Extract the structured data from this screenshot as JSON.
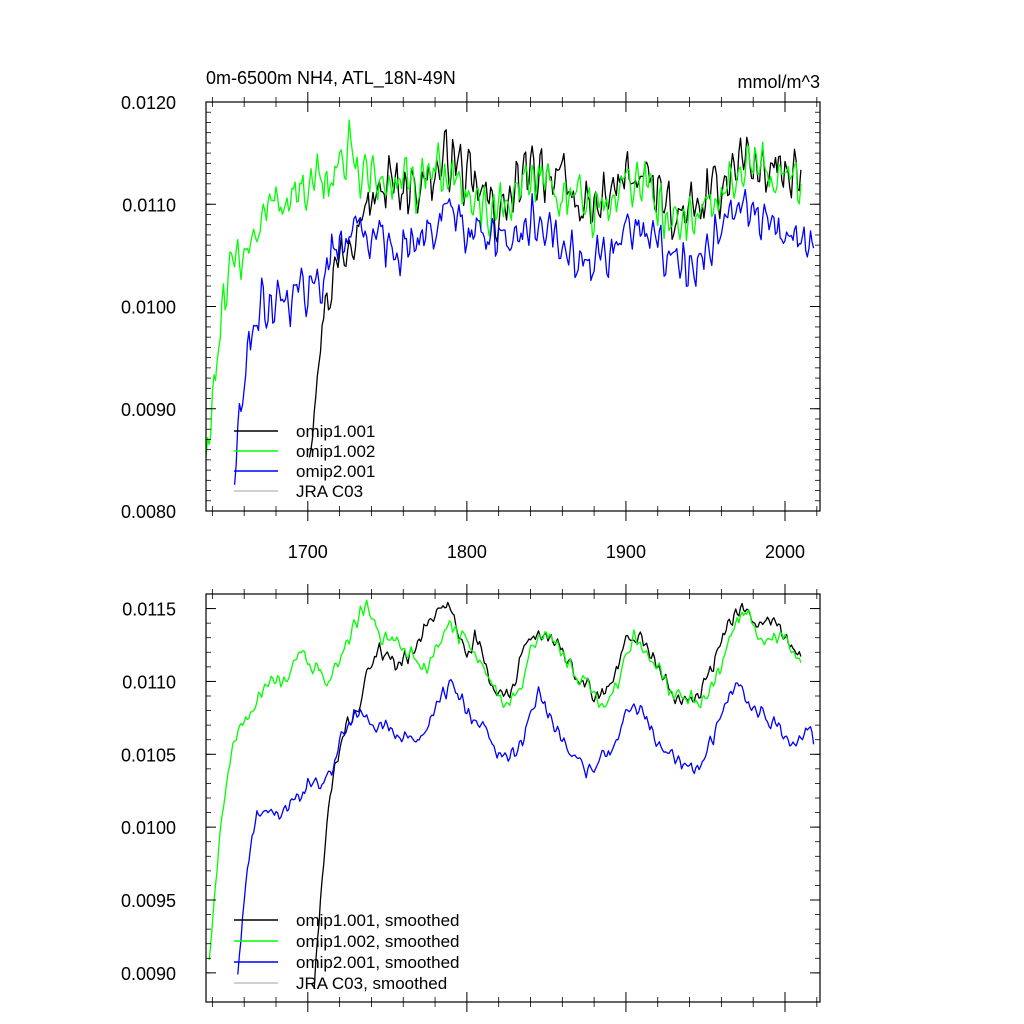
{
  "chart_data": [
    {
      "type": "line",
      "title": "0m-6500m NH4, ATL_18N-49N",
      "units_label": "mmol/m^3",
      "xlabel": "",
      "ylabel": "",
      "xlim": [
        1636,
        2022
      ],
      "ylim": [
        0.008,
        0.012
      ],
      "x_ticks": [
        1700,
        1800,
        1900,
        2000
      ],
      "x_tick_labels": [
        "1700",
        "1800",
        "1900",
        "2000"
      ],
      "y_ticks": [
        0.008,
        0.009,
        0.01,
        0.011,
        0.012
      ],
      "y_tick_labels": [
        "0.0080",
        "0.0090",
        "0.0100",
        "0.0110",
        "0.0120"
      ],
      "grid": false,
      "legend_position": "bottom-left",
      "series": [
        {
          "name": "omip1.001",
          "color": "#000000",
          "noise": 0.00028,
          "period": 5,
          "x": [
            1701,
            1704,
            1708,
            1712,
            1716,
            1720,
            1724,
            1728,
            1732,
            1736,
            1740,
            1745,
            1750,
            1760,
            1770,
            1780,
            1786,
            1790,
            1795,
            1800,
            1810,
            1820,
            1830,
            1840,
            1845,
            1850,
            1860,
            1870,
            1880,
            1890,
            1900,
            1905,
            1910,
            1920,
            1930,
            1940,
            1950,
            1960,
            1970,
            1975,
            1980,
            1990,
            2000,
            2010
          ],
          "y": [
            0.0085,
            0.0092,
            0.0097,
            0.0101,
            0.0103,
            0.0105,
            0.0106,
            0.0108,
            0.0109,
            0.011,
            0.011,
            0.0111,
            0.0112,
            0.0112,
            0.0112,
            0.0113,
            0.0114,
            0.0115,
            0.0114,
            0.0112,
            0.0111,
            0.0109,
            0.0111,
            0.0113,
            0.01135,
            0.01135,
            0.0112,
            0.011,
            0.0109,
            0.0111,
            0.01125,
            0.0113,
            0.01125,
            0.0111,
            0.0109,
            0.0109,
            0.011,
            0.0112,
            0.0114,
            0.0115,
            0.0114,
            0.0113,
            0.0113,
            0.0112
          ]
        },
        {
          "name": "omip1.002",
          "color": "#00ff00",
          "noise": 0.00028,
          "period": 5,
          "x": [
            1636,
            1640,
            1644,
            1648,
            1652,
            1656,
            1660,
            1665,
            1670,
            1675,
            1680,
            1690,
            1700,
            1710,
            1715,
            1720,
            1725,
            1730,
            1735,
            1740,
            1745,
            1750,
            1760,
            1770,
            1780,
            1786,
            1790,
            1795,
            1800,
            1810,
            1820,
            1830,
            1840,
            1845,
            1850,
            1860,
            1870,
            1880,
            1890,
            1900,
            1905,
            1910,
            1920,
            1930,
            1940,
            1950,
            1960,
            1970,
            1975,
            1980,
            1990,
            2000,
            2010
          ],
          "y": [
            0.0085,
            0.0091,
            0.0096,
            0.01,
            0.0103,
            0.0105,
            0.0106,
            0.0107,
            0.0108,
            0.01095,
            0.011,
            0.0111,
            0.0111,
            0.0112,
            0.0113,
            0.0114,
            0.0115,
            0.0114,
            0.0113,
            0.0113,
            0.0112,
            0.0112,
            0.0112,
            0.0111,
            0.0113,
            0.0113,
            0.0113,
            0.0112,
            0.0111,
            0.011,
            0.0109,
            0.0111,
            0.0113,
            0.0113,
            0.01125,
            0.0111,
            0.011,
            0.0109,
            0.011,
            0.0112,
            0.0113,
            0.0112,
            0.011,
            0.0109,
            0.0109,
            0.0109,
            0.0111,
            0.0113,
            0.0114,
            0.0114,
            0.0113,
            0.0113,
            0.0111
          ]
        },
        {
          "name": "omip2.001",
          "color": "#0000ff",
          "noise": 0.00025,
          "period": 5,
          "x": [
            1654,
            1658,
            1662,
            1666,
            1670,
            1680,
            1690,
            1700,
            1710,
            1715,
            1720,
            1725,
            1730,
            1740,
            1750,
            1760,
            1770,
            1780,
            1786,
            1790,
            1795,
            1800,
            1810,
            1820,
            1830,
            1840,
            1845,
            1850,
            1860,
            1870,
            1880,
            1890,
            1900,
            1905,
            1910,
            1920,
            1930,
            1940,
            1950,
            1960,
            1970,
            1975,
            1980,
            1990,
            2000,
            2010,
            2018
          ],
          "y": [
            0.0084,
            0.009,
            0.0095,
            0.0098,
            0.01,
            0.0101,
            0.0101,
            0.0102,
            0.0103,
            0.0105,
            0.0106,
            0.0107,
            0.0108,
            0.0107,
            0.0106,
            0.0106,
            0.0106,
            0.0108,
            0.0109,
            0.011,
            0.0109,
            0.0108,
            0.0107,
            0.0106,
            0.0106,
            0.0108,
            0.0109,
            0.0109,
            0.0107,
            0.0105,
            0.0104,
            0.0105,
            0.0107,
            0.0108,
            0.0108,
            0.0106,
            0.0105,
            0.0104,
            0.0105,
            0.0107,
            0.0109,
            0.011,
            0.0109,
            0.0108,
            0.0107,
            0.0106,
            0.0106
          ]
        },
        {
          "name": "JRA C03",
          "color": "#c0c0c0",
          "x": [],
          "y": []
        }
      ]
    },
    {
      "type": "line",
      "title": "",
      "xlabel": "",
      "ylabel": "",
      "xlim": [
        1636,
        2022
      ],
      "ylim": [
        0.0088,
        0.0116
      ],
      "x_ticks": [
        1700,
        1800,
        1900,
        2000
      ],
      "x_tick_labels": [],
      "y_ticks": [
        0.009,
        0.0095,
        0.01,
        0.0105,
        0.011,
        0.0115
      ],
      "y_tick_labels": [
        "0.0090",
        "0.0095",
        "0.0100",
        "0.0105",
        "0.0110",
        "0.0115"
      ],
      "grid": false,
      "legend_position": "bottom-left",
      "series": [
        {
          "name": "omip1.001, smoothed",
          "color": "#000000",
          "noise": 5e-05,
          "period": 4,
          "x": [
            1704,
            1708,
            1712,
            1716,
            1720,
            1724,
            1728,
            1732,
            1736,
            1740,
            1744,
            1750,
            1755,
            1760,
            1765,
            1770,
            1775,
            1780,
            1785,
            1790,
            1795,
            1800,
            1805,
            1810,
            1815,
            1820,
            1825,
            1830,
            1835,
            1840,
            1845,
            1850,
            1855,
            1860,
            1865,
            1870,
            1875,
            1880,
            1885,
            1890,
            1895,
            1900,
            1905,
            1910,
            1915,
            1920,
            1925,
            1930,
            1935,
            1940,
            1945,
            1950,
            1955,
            1960,
            1965,
            1970,
            1975,
            1980,
            1985,
            1990,
            1995,
            2000,
            2005,
            2010
          ],
          "y": [
            0.0089,
            0.0095,
            0.01,
            0.01035,
            0.01055,
            0.0107,
            0.01075,
            0.0108,
            0.011,
            0.0111,
            0.0112,
            0.0112,
            0.0111,
            0.01115,
            0.0112,
            0.0113,
            0.0114,
            0.01145,
            0.0115,
            0.0115,
            0.0113,
            0.0112,
            0.0113,
            0.0112,
            0.011,
            0.0109,
            0.0109,
            0.011,
            0.0112,
            0.0113,
            0.0113,
            0.0113,
            0.0113,
            0.0112,
            0.0111,
            0.011,
            0.011,
            0.0109,
            0.0109,
            0.011,
            0.0111,
            0.0113,
            0.0113,
            0.0113,
            0.0112,
            0.0111,
            0.011,
            0.0109,
            0.0109,
            0.0109,
            0.0109,
            0.011,
            0.0111,
            0.0113,
            0.0114,
            0.0115,
            0.0115,
            0.0114,
            0.0114,
            0.0114,
            0.0114,
            0.0113,
            0.0112,
            0.0112
          ]
        },
        {
          "name": "omip1.002, smoothed",
          "color": "#00ff00",
          "noise": 5e-05,
          "period": 4,
          "x": [
            1638,
            1642,
            1646,
            1650,
            1654,
            1658,
            1662,
            1666,
            1670,
            1674,
            1678,
            1682,
            1686,
            1690,
            1694,
            1698,
            1702,
            1706,
            1710,
            1714,
            1718,
            1722,
            1726,
            1730,
            1734,
            1738,
            1742,
            1746,
            1750,
            1755,
            1760,
            1765,
            1770,
            1775,
            1780,
            1785,
            1790,
            1795,
            1800,
            1805,
            1810,
            1815,
            1820,
            1825,
            1830,
            1835,
            1840,
            1845,
            1850,
            1855,
            1860,
            1865,
            1870,
            1875,
            1880,
            1885,
            1890,
            1895,
            1900,
            1905,
            1910,
            1915,
            1920,
            1925,
            1930,
            1935,
            1940,
            1945,
            1950,
            1955,
            1960,
            1965,
            1970,
            1975,
            1980,
            1985,
            1990,
            1995,
            2000,
            2005,
            2010
          ],
          "y": [
            0.0091,
            0.0096,
            0.0101,
            0.0104,
            0.0106,
            0.0107,
            0.0107,
            0.0108,
            0.0109,
            0.011,
            0.01105,
            0.011,
            0.011,
            0.0111,
            0.0112,
            0.0112,
            0.0111,
            0.0111,
            0.011,
            0.011,
            0.0111,
            0.0112,
            0.0113,
            0.0114,
            0.0115,
            0.0115,
            0.0114,
            0.0113,
            0.0113,
            0.0113,
            0.0112,
            0.0112,
            0.0111,
            0.0111,
            0.0112,
            0.0113,
            0.0114,
            0.0113,
            0.0113,
            0.0112,
            0.0111,
            0.011,
            0.0109,
            0.01085,
            0.0109,
            0.011,
            0.0112,
            0.0113,
            0.0113,
            0.0113,
            0.0112,
            0.0111,
            0.011,
            0.011,
            0.0109,
            0.0108,
            0.0109,
            0.011,
            0.0112,
            0.0113,
            0.0112,
            0.0112,
            0.0111,
            0.011,
            0.0109,
            0.0109,
            0.0109,
            0.01085,
            0.0109,
            0.011,
            0.0111,
            0.0113,
            0.0114,
            0.0115,
            0.0114,
            0.0113,
            0.0113,
            0.0113,
            0.0113,
            0.0112,
            0.0111
          ]
        },
        {
          "name": "omip2.001, smoothed",
          "color": "#0000ff",
          "noise": 5e-05,
          "period": 4,
          "x": [
            1656,
            1659,
            1662,
            1665,
            1668,
            1672,
            1676,
            1680,
            1685,
            1690,
            1695,
            1700,
            1705,
            1710,
            1715,
            1720,
            1725,
            1730,
            1735,
            1740,
            1745,
            1750,
            1755,
            1760,
            1765,
            1770,
            1775,
            1780,
            1785,
            1790,
            1795,
            1800,
            1805,
            1810,
            1815,
            1820,
            1825,
            1830,
            1835,
            1840,
            1845,
            1850,
            1855,
            1860,
            1865,
            1870,
            1875,
            1880,
            1885,
            1890,
            1895,
            1900,
            1905,
            1910,
            1915,
            1920,
            1925,
            1930,
            1935,
            1940,
            1945,
            1950,
            1955,
            1960,
            1965,
            1970,
            1975,
            1980,
            1985,
            1990,
            1995,
            2000,
            2005,
            2010,
            2015,
            2018
          ],
          "y": [
            0.009,
            0.0094,
            0.0097,
            0.0099,
            0.0101,
            0.0101,
            0.0101,
            0.0101,
            0.0101,
            0.0102,
            0.0102,
            0.0103,
            0.0103,
            0.0103,
            0.0104,
            0.0106,
            0.0107,
            0.0108,
            0.0108,
            0.0107,
            0.0107,
            0.0107,
            0.0106,
            0.0106,
            0.0106,
            0.0106,
            0.0107,
            0.0108,
            0.0109,
            0.011,
            0.0109,
            0.0108,
            0.0107,
            0.0107,
            0.0106,
            0.0105,
            0.0105,
            0.0105,
            0.0106,
            0.0108,
            0.0109,
            0.0108,
            0.0107,
            0.0106,
            0.0105,
            0.0105,
            0.0104,
            0.0104,
            0.0105,
            0.0105,
            0.0106,
            0.0108,
            0.01085,
            0.0108,
            0.0107,
            0.0106,
            0.0105,
            0.0105,
            0.0104,
            0.0104,
            0.0104,
            0.0105,
            0.0106,
            0.0108,
            0.0109,
            0.011,
            0.0109,
            0.0108,
            0.0108,
            0.0107,
            0.0107,
            0.0106,
            0.0106,
            0.0106,
            0.0107,
            0.0106
          ]
        },
        {
          "name": "JRA C03, smoothed",
          "color": "#c0c0c0",
          "x": [],
          "y": []
        }
      ]
    }
  ]
}
